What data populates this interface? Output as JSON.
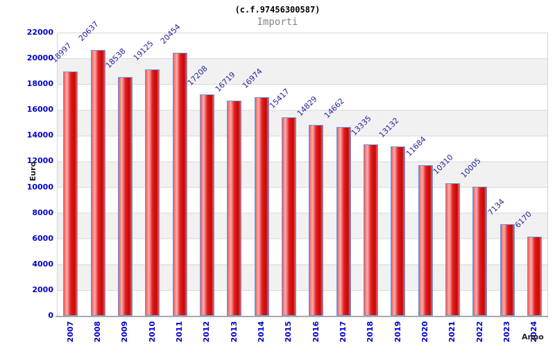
{
  "header": {
    "title": "(c.f.97456300587)",
    "subtitle": "Importi"
  },
  "chart_data": {
    "type": "bar",
    "title": "(c.f.97456300587)",
    "subtitle": "Importi",
    "xlabel": "Anno",
    "ylabel": "Euro",
    "categories": [
      "2007",
      "2008",
      "2009",
      "2010",
      "2011",
      "2012",
      "2013",
      "2014",
      "2015",
      "2016",
      "2017",
      "2018",
      "2019",
      "2020",
      "2021",
      "2022",
      "2023",
      "2024"
    ],
    "values": [
      18997,
      20637,
      18538,
      19125,
      20454,
      17208,
      16719,
      16974,
      15417,
      14829,
      14662,
      13335,
      13132,
      11684,
      10310,
      10005,
      7134,
      6170
    ],
    "ylim": [
      0,
      22000
    ],
    "yticks": [
      0,
      2000,
      4000,
      6000,
      8000,
      10000,
      12000,
      14000,
      16000,
      18000,
      20000,
      22000
    ],
    "grid": "alternating-horizontal-bands",
    "legend_position": "none",
    "value_label_rotation_deg": 45,
    "x_tick_rotation_deg": 90
  },
  "colors": {
    "background": "#ffffff",
    "band_light": "#ffffff",
    "band_dark": "#f1f1f1",
    "grid_line": "#d8d8d8",
    "plot_border": "#d4d4d4",
    "axis_line": "#a8a8a8",
    "bar_border": "#639ae0",
    "bar_gradient": [
      "#ef5a5a",
      "#f8b0b0",
      "#e31b1b",
      "#c40808",
      "#ea6262"
    ],
    "y_tick_label": "#0000cc",
    "x_tick_label": "#0000cc",
    "value_label": "#26269c",
    "title": "#000000",
    "subtitle": "#848484",
    "axis_title": "#222222"
  }
}
